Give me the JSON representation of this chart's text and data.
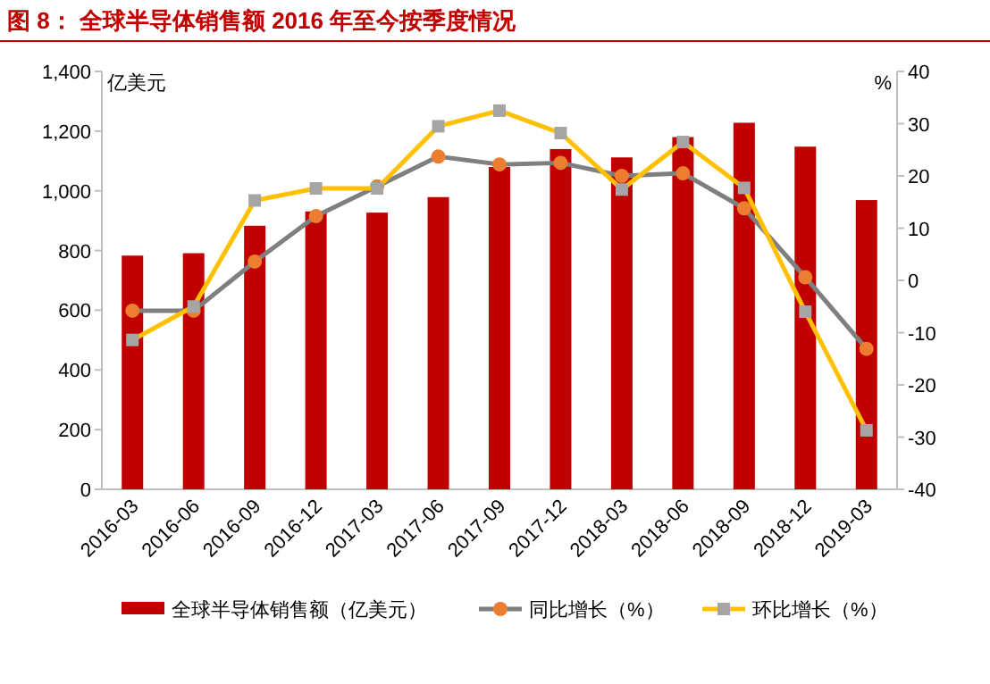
{
  "chart_data": {
    "type": "bar",
    "title": "图 8：  全球半导体销售额 2016 年至今按季度情况",
    "ylabel": "亿美元",
    "y2label": "%",
    "categories": [
      "2016-03",
      "2016-06",
      "2016-09",
      "2016-12",
      "2017-03",
      "2017-06",
      "2017-09",
      "2017-12",
      "2018-03",
      "2018-06",
      "2018-09",
      "2018-12",
      "2019-03"
    ],
    "series": [
      {
        "name": "全球半导体销售额（亿美元）",
        "color": "#c00000",
        "values": [
          783,
          791,
          883,
          931,
          927,
          979,
          1080,
          1140,
          1112,
          1180,
          1228,
          1148,
          969
        ]
      },
      {
        "name": "同比增长（%）",
        "type": "line",
        "axis": "y2",
        "color": "#7f7f7f",
        "marker": "circle",
        "values": [
          -5.8,
          -5.8,
          3.6,
          12.3,
          18.0,
          23.7,
          22.2,
          22.5,
          20.0,
          20.5,
          13.8,
          0.6,
          -13.1
        ]
      },
      {
        "name": "环比增长（%）",
        "type": "line",
        "axis": "y2",
        "color": "#ffc000",
        "marker": "square",
        "values": [
          -11.4,
          -5.0,
          15.3,
          17.6,
          17.6,
          29.5,
          32.5,
          28.2,
          17.4,
          26.5,
          17.7,
          -6.0,
          -28.7
        ]
      }
    ],
    "ylim": [
      0,
      1400
    ],
    "yticks": [
      0,
      {
        "value": 200,
        "label": "200"
      },
      {
        "value": 400,
        "label": "400"
      },
      {
        "value": 600,
        "label": "600"
      },
      {
        "value": 800,
        "label": "800"
      },
      {
        "value": 1000,
        "label": "1,000"
      },
      {
        "value": 1200,
        "label": "1,200"
      },
      {
        "value": 1400,
        "label": "1,400"
      }
    ],
    "y2lim": [
      -40,
      40
    ],
    "y2ticks": [
      -40,
      -30,
      -20,
      -10,
      0,
      10,
      20,
      30,
      40
    ],
    "grid": false,
    "legend": "bottom"
  }
}
